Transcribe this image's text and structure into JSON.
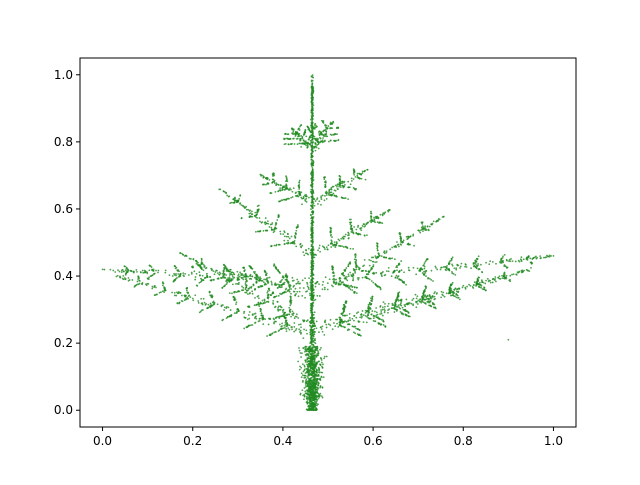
{
  "chart_data": {
    "type": "scatter",
    "title": "",
    "xlabel": "",
    "ylabel": "",
    "xlim": [
      -0.05,
      1.05
    ],
    "ylim": [
      -0.05,
      1.05
    ],
    "xticks": [
      0.0,
      0.2,
      0.4,
      0.6,
      0.8,
      1.0
    ],
    "yticks": [
      0.0,
      0.2,
      0.4,
      0.6,
      0.8,
      1.0
    ],
    "xtick_labels": [
      "0.0",
      "0.2",
      "0.4",
      "0.6",
      "0.8",
      "1.0"
    ],
    "ytick_labels": [
      "0.0",
      "0.2",
      "0.4",
      "0.6",
      "0.8",
      "1.0"
    ],
    "grid": false,
    "legend": "none",
    "point_color": "#228b22",
    "shape": "fractal fern tree (dense point cloud)",
    "trunk": {
      "x": 0.465,
      "y_range": [
        0.0,
        1.0
      ]
    },
    "tiers": [
      {
        "y_base": 0.38,
        "left_tip": [
          0.0,
          0.42
        ],
        "right_tip": [
          1.0,
          0.46
        ]
      },
      {
        "y_base": 0.23,
        "left_tip": [
          0.03,
          0.4
        ],
        "right_tip": [
          0.95,
          0.42
        ]
      },
      {
        "y_base": 0.25,
        "left_tip": [
          0.17,
          0.47
        ],
        "right_tip": [
          0.89,
          0.4
        ]
      },
      {
        "y_base": 0.34,
        "left_tip": [
          0.27,
          0.42
        ],
        "right_tip": [
          0.76,
          0.58
        ]
      },
      {
        "y_base": 0.46,
        "left_tip": [
          0.26,
          0.66
        ],
        "right_tip": [
          0.64,
          0.6
        ]
      },
      {
        "y_base": 0.62,
        "left_tip": [
          0.35,
          0.7
        ],
        "right_tip": [
          0.59,
          0.72
        ]
      },
      {
        "y_base": 0.78,
        "left_tip": [
          0.42,
          0.84
        ],
        "right_tip": [
          0.51,
          0.86
        ]
      }
    ],
    "isolated_points": [
      [
        0.0,
        0.42
      ],
      [
        1.0,
        0.46
      ],
      [
        0.9,
        0.21
      ]
    ]
  }
}
